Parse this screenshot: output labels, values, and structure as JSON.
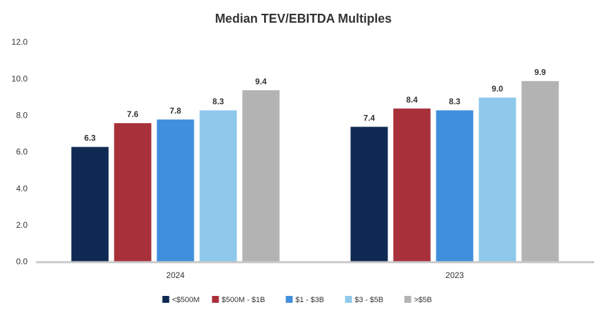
{
  "chart_data": {
    "type": "bar",
    "title": "Median TEV/EBITDA Multiples",
    "categories": [
      "2024",
      "2023"
    ],
    "series": [
      {
        "name": "<$500M",
        "color": "#0f2a52",
        "values": [
          6.3,
          7.4
        ],
        "value_labels": [
          "6.3",
          "7.4"
        ]
      },
      {
        "name": "$500M - $1B",
        "color": "#a8303a",
        "values": [
          7.6,
          8.4
        ],
        "value_labels": [
          "7.6",
          "8.4"
        ]
      },
      {
        "name": "$1 - $3B",
        "color": "#3f8fdc",
        "values": [
          7.8,
          8.3
        ],
        "value_labels": [
          "7.8",
          "8.3"
        ]
      },
      {
        "name": "$3 - $5B",
        "color": "#8ec9ec",
        "values": [
          8.3,
          9
        ],
        "value_labels": [
          "8.3",
          "9.0"
        ]
      },
      {
        "name": ">$5B",
        "color": "#b3b3b3",
        "values": [
          9.4,
          9.9
        ],
        "value_labels": [
          "9.4",
          "9.9"
        ]
      }
    ],
    "ylim": [
      0,
      12
    ],
    "yticks": [
      {
        "value": 0,
        "label": "0.0"
      },
      {
        "value": 2,
        "label": "2.0"
      },
      {
        "value": 4,
        "label": "4.0"
      },
      {
        "value": 6,
        "label": "6.0"
      },
      {
        "value": 8,
        "label": "8.0"
      },
      {
        "value": 10,
        "label": "10.0"
      },
      {
        "value": 12,
        "label": "12.0"
      }
    ],
    "grid": false,
    "legend": "bottom"
  }
}
